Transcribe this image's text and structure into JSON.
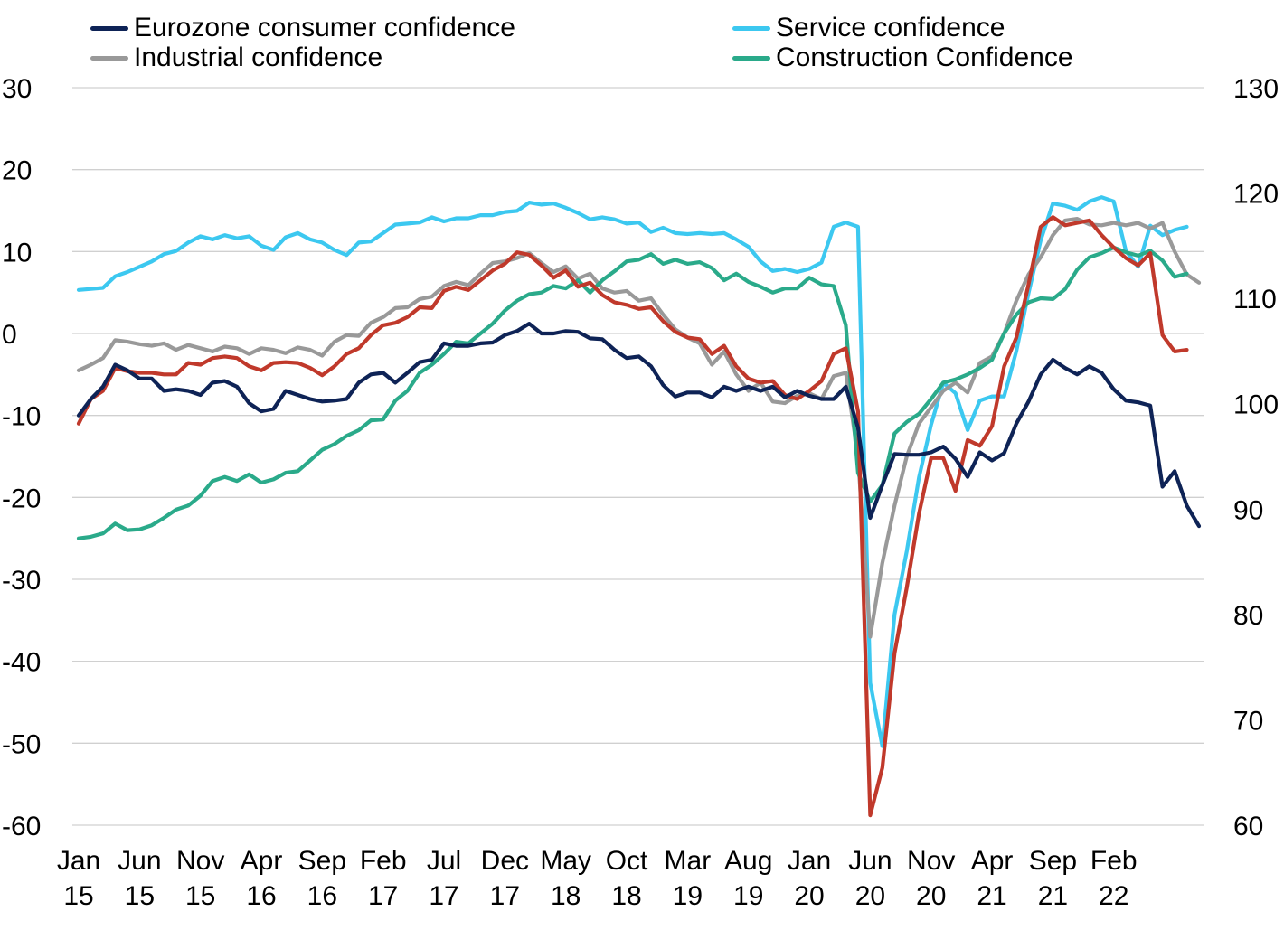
{
  "chart_data": {
    "type": "line",
    "left_axis": {
      "ylim": [
        -60,
        30
      ],
      "ticks": [
        "30",
        "20",
        "10",
        "0",
        "-10",
        "-20",
        "-30",
        "-40",
        "-50",
        "-60"
      ]
    },
    "right_axis": {
      "ylim": [
        60,
        130
      ],
      "ticks": [
        "130",
        "120",
        "110",
        "100",
        "90",
        "80",
        "70",
        "60"
      ]
    },
    "x_tick_labels": [
      [
        "Jan",
        "15"
      ],
      [
        "Jun",
        "15"
      ],
      [
        "Nov",
        "15"
      ],
      [
        "Apr",
        "16"
      ],
      [
        "Sep",
        "16"
      ],
      [
        "Feb",
        "17"
      ],
      [
        "Jul",
        "17"
      ],
      [
        "Dec",
        "17"
      ],
      [
        "May",
        "18"
      ],
      [
        "Oct",
        "18"
      ],
      [
        "Mar",
        "19"
      ],
      [
        "Aug",
        "19"
      ],
      [
        "Jan",
        "20"
      ],
      [
        "Jun",
        "20"
      ],
      [
        "Nov",
        "20"
      ],
      [
        "Apr",
        "21"
      ],
      [
        "Sep",
        "21"
      ],
      [
        "Feb",
        "22"
      ]
    ],
    "grid": true,
    "legend_position": "top",
    "series": [
      {
        "name": "Eurozone consumer confidence",
        "color": "#0e2356",
        "axis": "left",
        "values": [
          -10,
          -8,
          -6.5,
          -3.8,
          -4.5,
          -5.5,
          -5.5,
          -7,
          -6.8,
          -7,
          -7.5,
          -6,
          -5.8,
          -6.5,
          -8.5,
          -9.5,
          -9.2,
          -7,
          -7.5,
          -8,
          -8.3,
          -8.2,
          -8,
          -6,
          -5,
          -4.8,
          -6,
          -4.8,
          -3.5,
          -3.2,
          -1.2,
          -1.5,
          -1.5,
          -1.2,
          -1.1,
          -0.2,
          0.3,
          1.2,
          0,
          0,
          0.3,
          0.2,
          -0.6,
          -0.7,
          -2,
          -3,
          -2.8,
          -4,
          -6.3,
          -7.7,
          -7.2,
          -7.2,
          -7.8,
          -6.5,
          -7,
          -6.5,
          -7,
          -6.5,
          -7.8,
          -7,
          -7.6,
          -8,
          -8,
          -6.5,
          -11.5,
          -22.5,
          -18.5,
          -14.7,
          -14.8,
          -14.8,
          -14.5,
          -13.8,
          -15.3,
          -17.5,
          -14.5,
          -15.5,
          -14.6,
          -11,
          -8.3,
          -5,
          -3.2,
          -4.2,
          -5,
          -4,
          -4.8,
          -6.8,
          -8.2,
          -8.4,
          -8.8,
          -18.7,
          -16.8,
          -21,
          -23.5
        ]
      },
      {
        "name": "Service confidence",
        "color": "#3cc8f0",
        "axis": "right",
        "values": [
          110.8,
          110.9,
          111,
          112.1,
          112.5,
          113,
          113.5,
          114.2,
          114.5,
          115.3,
          115.9,
          115.6,
          116,
          115.7,
          115.9,
          115,
          114.6,
          115.8,
          116.2,
          115.6,
          115.3,
          114.6,
          114.1,
          115.3,
          115.4,
          116.2,
          117,
          117.1,
          117.2,
          117.7,
          117.3,
          117.6,
          117.6,
          117.9,
          117.9,
          118.2,
          118.3,
          119.1,
          118.9,
          119,
          118.6,
          118.1,
          117.5,
          117.7,
          117.5,
          117.1,
          117.2,
          116.3,
          116.7,
          116.2,
          116.1,
          116.2,
          116.1,
          116.2,
          115.6,
          114.9,
          113.5,
          112.6,
          112.8,
          112.5,
          112.8,
          113.4,
          116.8,
          117.2,
          116.8,
          73.5,
          67.5,
          80,
          86,
          93,
          98,
          102,
          101,
          97.5,
          100.3,
          100.7,
          100.7,
          105,
          110.5,
          115.5,
          119,
          118.8,
          118.4,
          119.2,
          119.6,
          119.2,
          114.5,
          113,
          116.9,
          116,
          116.5,
          116.8
        ]
      },
      {
        "name": "Industrial confidence",
        "color": "#999999",
        "axis": "left",
        "values": [
          -4.5,
          -3.8,
          -3,
          -0.8,
          -1,
          -1.3,
          -1.5,
          -1.2,
          -2,
          -1.4,
          -1.8,
          -2.2,
          -1.6,
          -1.8,
          -2.5,
          -1.8,
          -2,
          -2.4,
          -1.7,
          -2,
          -2.7,
          -1,
          -0.2,
          -0.3,
          1.3,
          2,
          3.1,
          3.2,
          4.2,
          4.5,
          5.8,
          6.3,
          5.9,
          7.3,
          8.6,
          8.8,
          9.2,
          9.8,
          8.6,
          7.5,
          8.2,
          6.7,
          7.3,
          5.5,
          5,
          5.2,
          4,
          4.3,
          2.3,
          0.5,
          -0.5,
          -1.2,
          -3.8,
          -2.2,
          -5,
          -7,
          -6,
          -8.3,
          -8.5,
          -7.6,
          -7.3,
          -8,
          -5.2,
          -4.8,
          -15,
          -37,
          -28,
          -21,
          -15,
          -11,
          -9,
          -7,
          -6,
          -7.2,
          -3.6,
          -2.8,
          0,
          4,
          7.2,
          9.3,
          12,
          13.8,
          14,
          13.3,
          13.2,
          13.5,
          13.2,
          13.5,
          12.8,
          13.5,
          10,
          7.2,
          6.2
        ]
      },
      {
        "name": "Construction Confidence",
        "color": "#2aaa8a",
        "axis": "left",
        "values": [
          -25,
          -24.8,
          -24.4,
          -23.2,
          -24,
          -23.9,
          -23.4,
          -22.5,
          -21.5,
          -21,
          -19.8,
          -18,
          -17.5,
          -18,
          -17.2,
          -18.2,
          -17.8,
          -17,
          -16.8,
          -15.5,
          -14.2,
          -13.5,
          -12.5,
          -11.8,
          -10.6,
          -10.5,
          -8.2,
          -7,
          -4.8,
          -3.8,
          -2.5,
          -1,
          -1.2,
          0,
          1.2,
          2.8,
          4,
          4.8,
          5,
          5.8,
          5.5,
          6.5,
          5,
          6.5,
          7.6,
          8.8,
          9,
          9.7,
          8.5,
          9,
          8.5,
          8.7,
          8,
          6.5,
          7.3,
          6.3,
          5.7,
          5,
          5.5,
          5.5,
          6.8,
          6,
          5.8,
          1,
          -17,
          -20.5,
          -18.5,
          -12.2,
          -10.8,
          -9.8,
          -8,
          -6,
          -5.6,
          -5,
          -4.2,
          -3.2,
          0,
          2.3,
          3.8,
          4.3,
          4.2,
          5.4,
          7.8,
          9.3,
          9.8,
          10.5,
          9.9,
          9.5,
          10.1,
          8.9,
          6.9,
          7.3
        ]
      },
      {
        "name": "",
        "color": "#c0392b",
        "axis": "left",
        "values": [
          -11,
          -8,
          -7,
          -4.2,
          -4.6,
          -4.8,
          -4.8,
          -5,
          -5,
          -3.6,
          -3.8,
          -3,
          -2.8,
          -3,
          -4,
          -4.5,
          -3.6,
          -3.5,
          -3.6,
          -4.2,
          -5.1,
          -4,
          -2.5,
          -1.8,
          -0.2,
          1,
          1.3,
          2,
          3.2,
          3.1,
          5.2,
          5.7,
          5.3,
          6.5,
          7.7,
          8.5,
          9.9,
          9.6,
          8.3,
          6.8,
          7.7,
          5.7,
          6.2,
          4.7,
          3.8,
          3.5,
          3,
          3.2,
          1.5,
          0.2,
          -0.5,
          -0.7,
          -2.5,
          -1.5,
          -4,
          -5.5,
          -6,
          -5.8,
          -7.5,
          -8,
          -7,
          -5.8,
          -2.5,
          -1.8,
          -9.5,
          -58.8,
          -53,
          -39,
          -31,
          -22,
          -15.2,
          -15.2,
          -19.2,
          -13,
          -13.7,
          -11.3,
          -4,
          -0.5,
          6,
          13,
          14.2,
          13.2,
          13.5,
          13.8,
          12,
          10.5,
          9.2,
          8.3,
          9.8,
          -0.2,
          -2.2,
          -2
        ]
      }
    ]
  }
}
